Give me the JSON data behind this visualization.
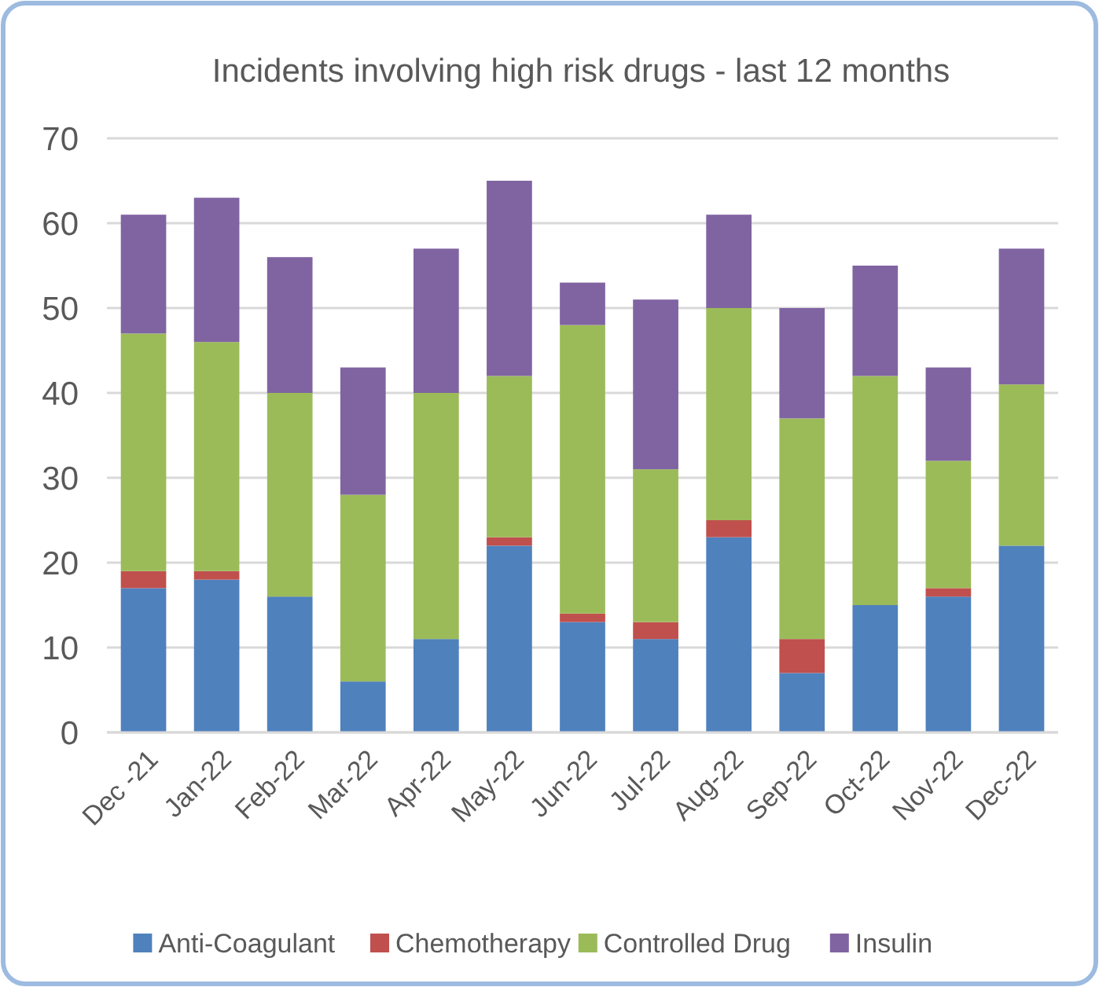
{
  "chart_data": {
    "type": "bar",
    "title": "Incidents involving high risk drugs - last 12 months",
    "categories": [
      "Dec -21",
      "Jan-22",
      "Feb-22",
      "Mar-22",
      "Apr-22",
      "May-22",
      "Jun-22",
      "Jul-22",
      "Aug-22",
      "Sep-22",
      "Oct-22",
      "Nov-22",
      "Dec-22"
    ],
    "series": [
      {
        "name": "Anti-Coagulant",
        "color": "#4f81bd",
        "values": [
          17,
          18,
          16,
          6,
          11,
          22,
          13,
          11,
          23,
          7,
          15,
          16,
          22
        ]
      },
      {
        "name": "Chemotherapy",
        "color": "#c0504d",
        "values": [
          2,
          1,
          0,
          0,
          0,
          1,
          1,
          2,
          2,
          4,
          0,
          1,
          0
        ]
      },
      {
        "name": "Controlled Drug",
        "color": "#9bbb59",
        "values": [
          28,
          27,
          24,
          22,
          29,
          19,
          34,
          18,
          25,
          26,
          27,
          15,
          19
        ]
      },
      {
        "name": "Insulin",
        "color": "#8064a2",
        "values": [
          14,
          17,
          16,
          15,
          17,
          23,
          5,
          20,
          11,
          13,
          13,
          11,
          16
        ]
      }
    ],
    "stacked": true,
    "ylim": [
      0,
      70
    ],
    "yticks": [
      0,
      10,
      20,
      30,
      40,
      50,
      60,
      70
    ],
    "grid": "y",
    "legend": "bottom"
  }
}
